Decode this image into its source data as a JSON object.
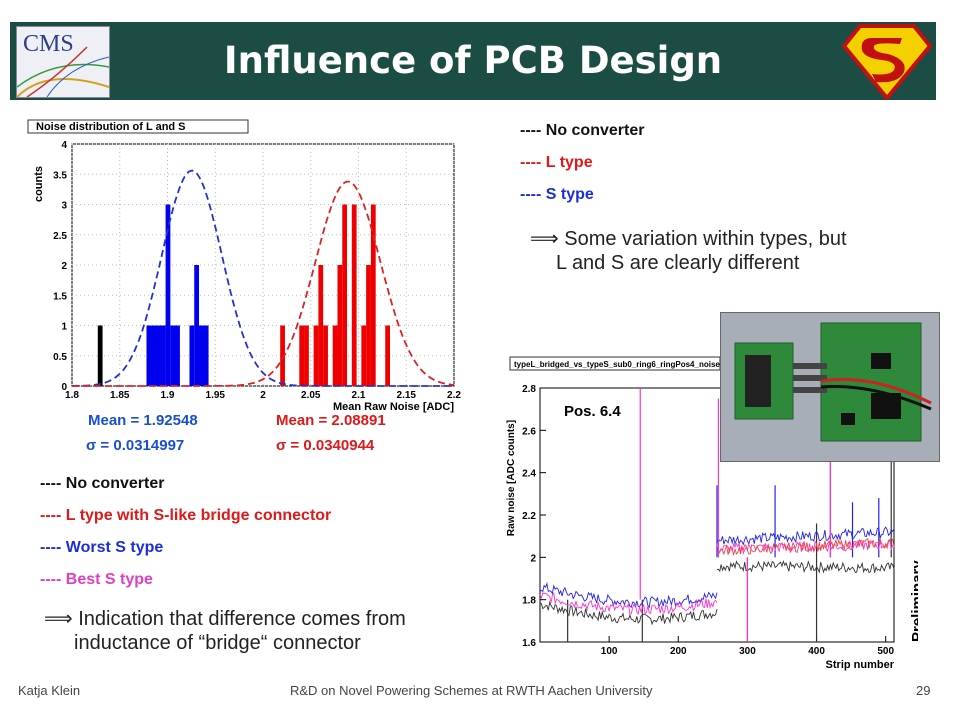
{
  "slide": {
    "title": "Influence of PCB Design",
    "cms_logo_text": "CMS",
    "footer_author": "Katja Klein",
    "footer_title": "R&D on Novel Powering Schemes at RWTH Aachen University",
    "page_number": "29"
  },
  "legend_top": [
    {
      "text": "---- No converter",
      "color": "#111111"
    },
    {
      "text": "---- L type",
      "color": "#e01818"
    },
    {
      "text": "---- S type",
      "color": "#1a2ed8"
    }
  ],
  "conclusion_top": [
    "⟹ Some variation within types, but",
    "L and S are clearly different"
  ],
  "legend_bottom": [
    {
      "text": "---- No converter",
      "color": "#111111"
    },
    {
      "text": "---- L type with S-like bridge connector",
      "color": "#e01818"
    },
    {
      "text": "---- Worst S type",
      "color": "#1a2ed8"
    },
    {
      "text": "---- Best S type",
      "color": "#e040c0"
    }
  ],
  "conclusion_bottom": [
    "⟹ Indication that difference comes from",
    "inductance of “bridge“ connector"
  ],
  "stats": {
    "blue_mean": "Mean = 1.92548",
    "blue_sigma": "σ = 0.0314997",
    "red_mean": "Mean = 2.08891",
    "red_sigma": "σ = 0.0340944",
    "blue_color": "#1a4fd0",
    "red_color": "#e01818"
  },
  "chart_data": [
    {
      "type": "bar",
      "title": "Noise distribution of L and S",
      "xlabel": "Mean Raw Noise [ADC]",
      "ylabel": "counts",
      "xlim": [
        1.8,
        2.2
      ],
      "ylim": [
        0,
        4
      ],
      "x_ticks": [
        "1.8",
        "1.85",
        "1.9",
        "1.95",
        "2",
        "2.05",
        "2.1",
        "2.15",
        "2.2"
      ],
      "y_ticks": [
        "0",
        "0.5",
        "1",
        "1.5",
        "2",
        "2.5",
        "3",
        "3.5",
        "4"
      ],
      "grid": true,
      "series": [
        {
          "color": "#000000",
          "bins": [
            [
              1.827,
              1.832,
              1
            ]
          ]
        },
        {
          "color": "#0000ee",
          "bins": [
            [
              1.878,
              1.898,
              1
            ],
            [
              1.898,
              1.903,
              3
            ],
            [
              1.903,
              1.913,
              1
            ],
            [
              1.923,
              1.928,
              1
            ],
            [
              1.928,
              1.933,
              2
            ],
            [
              1.933,
              1.943,
              1
            ]
          ]
        },
        {
          "color": "#ee0000",
          "bins": [
            [
              2.018,
              2.023,
              1
            ],
            [
              2.038,
              2.043,
              1
            ],
            [
              2.043,
              2.048,
              1
            ],
            [
              2.053,
              2.058,
              1
            ],
            [
              2.058,
              2.063,
              2
            ],
            [
              2.063,
              2.068,
              1
            ],
            [
              2.073,
              2.078,
              1
            ],
            [
              2.078,
              2.083,
              2
            ],
            [
              2.083,
              2.088,
              3
            ],
            [
              2.093,
              2.098,
              3
            ],
            [
              2.103,
              2.108,
              1
            ],
            [
              2.108,
              2.113,
              2
            ],
            [
              2.113,
              2.118,
              3
            ],
            [
              2.128,
              2.133,
              1
            ]
          ]
        }
      ],
      "fits": [
        {
          "color": "#2233cc",
          "mean": 1.92548,
          "sigma": 0.0314997,
          "amplitude": 3.56
        },
        {
          "color": "#dd2222",
          "mean": 2.08891,
          "sigma": 0.0340944,
          "amplitude": 3.38
        }
      ]
    },
    {
      "type": "line",
      "title": "typeL_bridged_vs_typeS_sub0_ring6_ringPos4_noise_",
      "xlabel": "Strip number",
      "ylabel": "Raw noise [ADC counts]",
      "xlim": [
        0,
        512
      ],
      "ylim": [
        1.6,
        2.8
      ],
      "x_ticks": [
        "100",
        "200",
        "300",
        "400",
        "500"
      ],
      "y_ticks": [
        "1.6",
        "1.8",
        "2",
        "2.2",
        "2.4",
        "2.6",
        "2.8"
      ],
      "annotation": "Pos. 6.4",
      "watermark": "Preliminary",
      "series": [
        {
          "color": "#333333",
          "segments": [
            [
              0,
              1.78,
              256,
              1.74
            ],
            [
              256,
              1.96,
              512,
              1.95
            ]
          ],
          "spikes": [
            [
              40,
              1.6
            ],
            [
              148,
              1.6
            ],
            [
              300,
              1.6
            ],
            [
              400,
              2.16
            ],
            [
              400,
              1.6
            ],
            [
              508,
              2.8
            ]
          ]
        },
        {
          "color": "#2222ee",
          "segments": [
            [
              0,
              1.86,
              256,
              1.82
            ],
            [
              256,
              2.08,
              512,
              2.12
            ]
          ],
          "spikes": [
            [
              256,
              2.34
            ],
            [
              340,
              2.34
            ],
            [
              420,
              2.74
            ],
            [
              452,
              2.26
            ],
            [
              490,
              2.28
            ]
          ]
        },
        {
          "color": "#ff33cc",
          "segments": [
            [
              0,
              1.82,
              256,
              1.79
            ],
            [
              256,
              2.04,
              512,
              2.06
            ]
          ],
          "spikes": [
            [
              145,
              2.8
            ],
            [
              258,
              2.75
            ],
            [
              300,
              1.6
            ],
            [
              420,
              2.6
            ]
          ]
        },
        {
          "color": "#ee4444",
          "segments": [
            [
              256,
              2.03,
              512,
              2.07
            ]
          ],
          "spikes": []
        }
      ]
    }
  ]
}
